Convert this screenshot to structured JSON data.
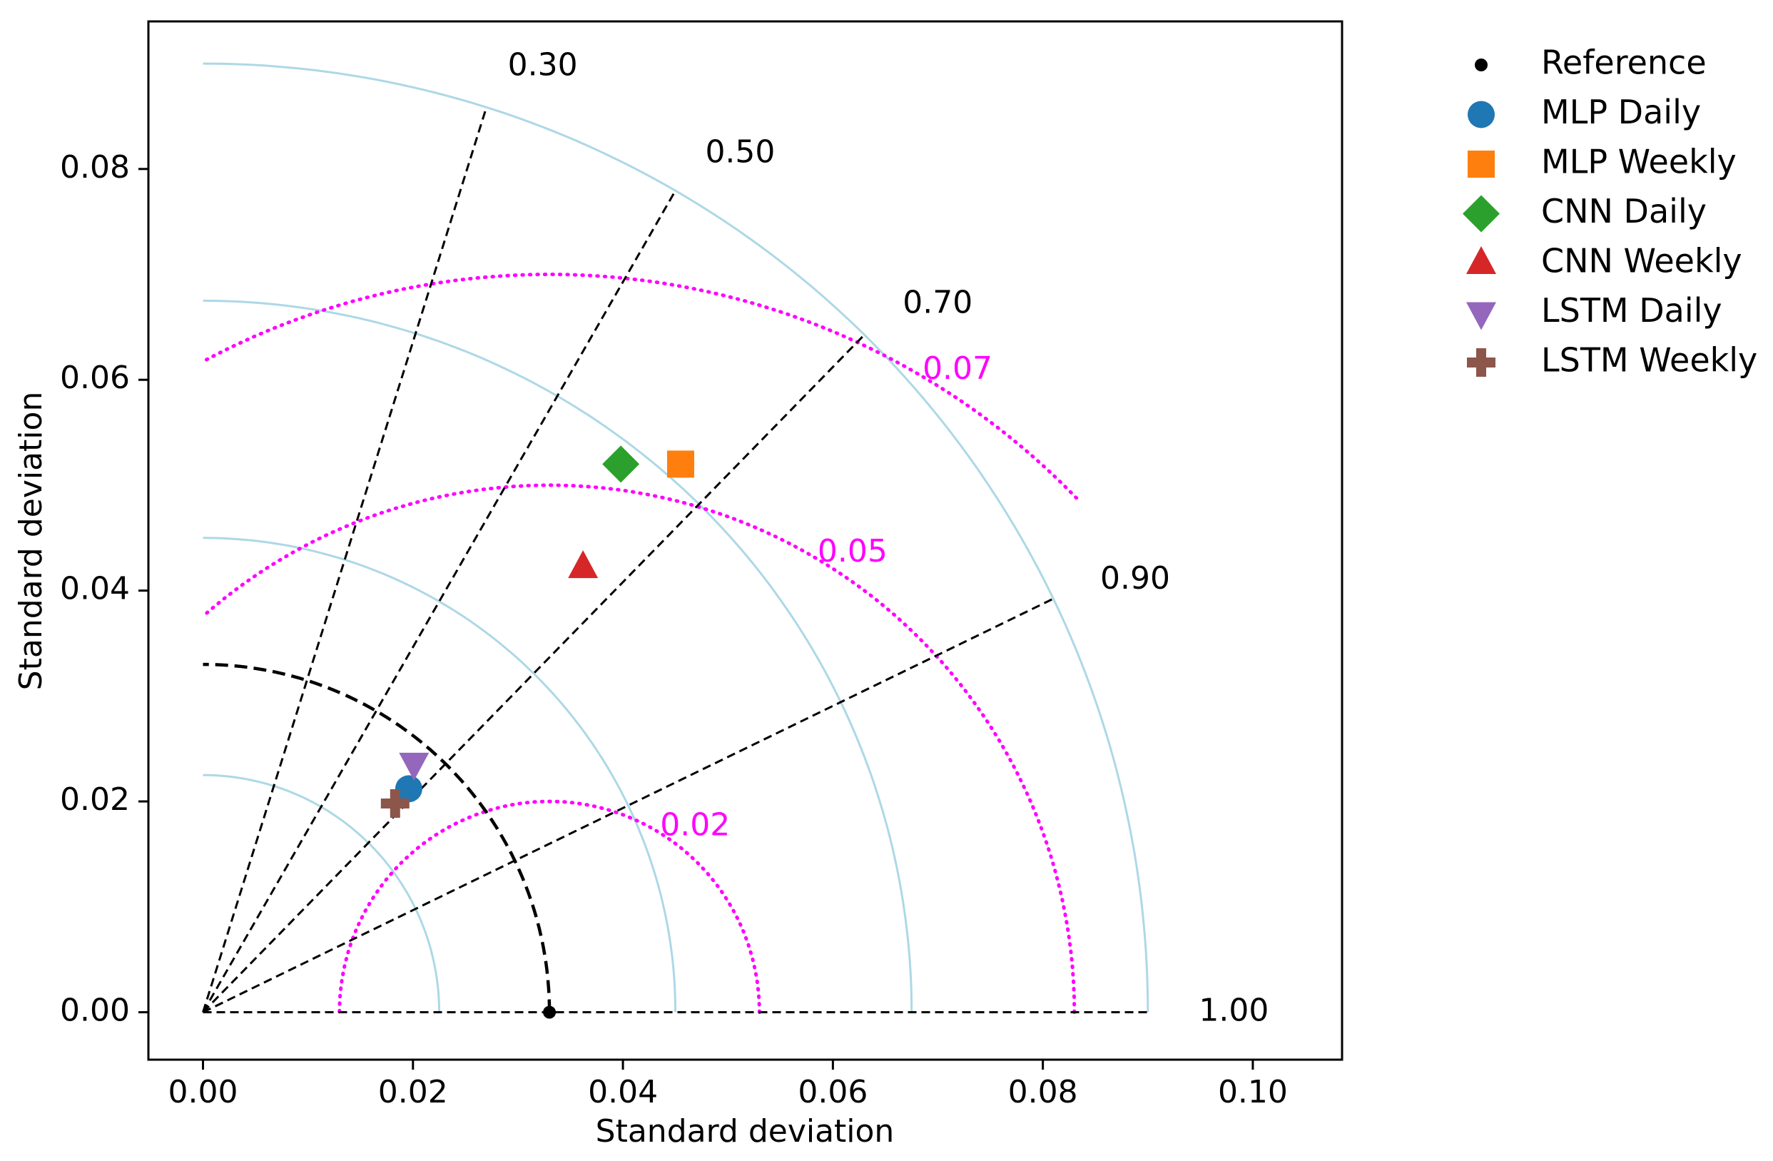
{
  "chart_data": {
    "type": "scatter",
    "xlabel": "Standard deviation",
    "ylabel": "Standard deviation",
    "xlim": [
      -0.0052,
      0.1085
    ],
    "ylim": [
      -0.0045,
      0.094
    ],
    "x_ticks": [
      "0.00",
      "0.02",
      "0.04",
      "0.06",
      "0.08",
      "0.10"
    ],
    "y_ticks": [
      "0.00",
      "0.02",
      "0.04",
      "0.06",
      "0.08"
    ],
    "reference_std": 0.033,
    "std_arcs": [
      0.0225,
      0.045,
      0.0675,
      0.09
    ],
    "correlation_lines": [
      {
        "r": 0.3,
        "label": "0.30"
      },
      {
        "r": 0.5,
        "label": "0.50"
      },
      {
        "r": 0.7,
        "label": "0.70"
      },
      {
        "r": 0.9,
        "label": "0.90"
      },
      {
        "r": 1.0,
        "label": "1.00"
      }
    ],
    "rmsd_contours": [
      {
        "value": 0.02,
        "label": "0.02"
      },
      {
        "value": 0.05,
        "label": "0.05"
      },
      {
        "value": 0.07,
        "label": "0.07"
      }
    ],
    "colors": {
      "std_arc": "#add8e6",
      "rmsd": "#ff00ff",
      "reference": "#000000"
    },
    "legend_position": "upper-right-outside",
    "series": [
      {
        "name": "Reference",
        "marker": "dot",
        "color": "#000000",
        "x": 0.033,
        "y": 0.0
      },
      {
        "name": "MLP Daily",
        "marker": "circle",
        "color": "#1f77b4",
        "x": 0.0196,
        "y": 0.0212
      },
      {
        "name": "MLP Weekly",
        "marker": "square",
        "color": "#ff7f0e",
        "x": 0.0455,
        "y": 0.052
      },
      {
        "name": "CNN Daily",
        "marker": "diamond",
        "color": "#2ca02c",
        "x": 0.0398,
        "y": 0.052
      },
      {
        "name": "CNN Weekly",
        "marker": "triangle-up",
        "color": "#d62728",
        "x": 0.0362,
        "y": 0.0422
      },
      {
        "name": "LSTM Daily",
        "marker": "triangle-down",
        "color": "#9467bd",
        "x": 0.0201,
        "y": 0.0236
      },
      {
        "name": "LSTM Weekly",
        "marker": "plus",
        "color": "#8c564b",
        "x": 0.0183,
        "y": 0.0198
      }
    ]
  }
}
